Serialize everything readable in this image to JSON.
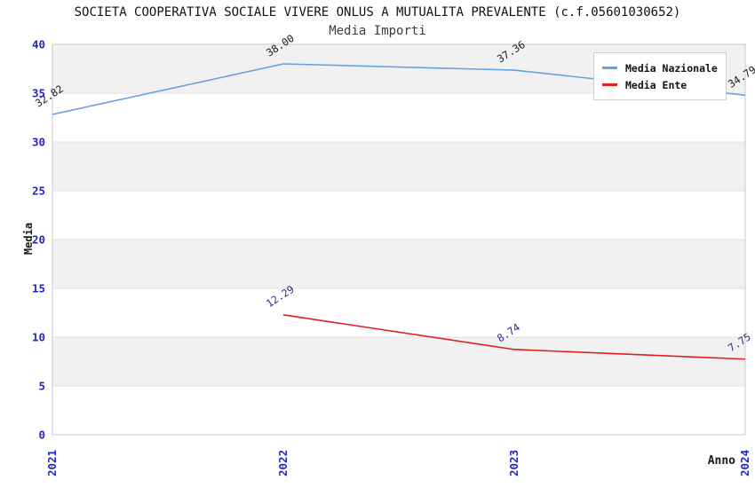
{
  "header": {
    "title": "SOCIETA COOPERATIVA SOCIALE VIVERE ONLUS A MUTUALITA PREVALENTE (c.f.05601030652)",
    "subtitle": "Media Importi"
  },
  "axes": {
    "y_label": "Media",
    "x_label": "Anno",
    "y_ticks": [
      0,
      5,
      10,
      15,
      20,
      25,
      30,
      35,
      40
    ],
    "x_ticks": [
      "2021",
      "2022",
      "2023",
      "2024"
    ]
  },
  "legend": {
    "items": [
      {
        "label": "Media Nazionale",
        "color": "#66a3e0"
      },
      {
        "label": "Media Ente",
        "color": "#e01f1f"
      }
    ]
  },
  "colors": {
    "tick_label": "#2323cc",
    "grid_line": "#e2e2e2",
    "plot_border": "#c9c9c9",
    "band_gray": "#f1f1f1",
    "band_white": "#ffffff"
  },
  "chart_data": {
    "type": "line",
    "title": "SOCIETA COOPERATIVA SOCIALE VIVERE ONLUS A MUTUALITA PREVALENTE (c.f.05601030652)",
    "subtitle": "Media Importi",
    "xlabel": "Anno",
    "ylabel": "Media",
    "x": [
      "2021",
      "2022",
      "2023",
      "2024"
    ],
    "series": [
      {
        "name": "Media Nazionale",
        "color": "#66a3e0",
        "label_color": "#1a1a1a",
        "values": [
          32.82,
          38.0,
          37.36,
          34.79
        ],
        "labels": [
          "32.82",
          "38.00",
          "37.36",
          "34.79"
        ]
      },
      {
        "name": "Media Ente",
        "color": "#e01f1f",
        "label_color": "#2b2b96",
        "values": [
          null,
          12.29,
          8.74,
          7.75
        ],
        "labels": [
          null,
          "12.29",
          "8.74",
          "7.75"
        ]
      }
    ],
    "ylim": [
      0,
      40
    ],
    "ytick_step": 5,
    "grid": true,
    "alternating_bands": true,
    "legend_position": "top-right"
  }
}
